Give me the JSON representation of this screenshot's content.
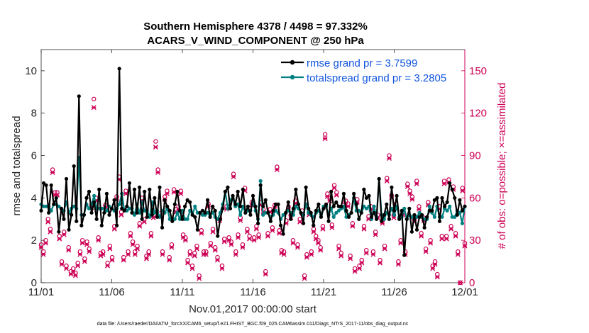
{
  "chart_data": {
    "type": "line",
    "title_line1": "Southern Hemisphere 4378 / 4498 = 97.332%",
    "title_line2": "ACARS_V_WIND_COMPONENT @ 250 hPa",
    "xlabel": "Nov.01,2017 00:00:00 start",
    "ylabel_left": "rmse and totalspread",
    "ylabel_right": "# of obs: o=possible; ×=assimilated",
    "x_tick_labels": [
      "11/01",
      "11/06",
      "11/11",
      "11/16",
      "11/21",
      "11/26",
      "12/01"
    ],
    "x_tick_days": [
      0,
      5,
      10,
      15,
      20,
      25,
      30
    ],
    "xlim": [
      0,
      30
    ],
    "ylim_left": [
      0,
      11
    ],
    "y_ticks_left": [
      "0",
      "2",
      "4",
      "6",
      "8",
      "10"
    ],
    "y_tick_values_left": [
      0,
      2,
      4,
      6,
      8,
      10
    ],
    "ylim_right": [
      0,
      165
    ],
    "y_ticks_right": [
      "0",
      "30",
      "60",
      "90",
      "120",
      "150"
    ],
    "y_tick_values_right": [
      0,
      30,
      60,
      90,
      120,
      150
    ],
    "footer": "data file: /Users/raeder/DAI/ATM_forcXX/CAM6_setup/f.e21.FHIST_BGC.f09_025.CAM6assim.011/Diags_NTrS_2017-11/obs_diag_output.nc",
    "colors": {
      "rmse": "#000000",
      "spread": "#008080",
      "obs": "#cc0055",
      "legend_text": "#1155dd",
      "right_axis": "#cc0055"
    },
    "series": [
      {
        "name": "rmse",
        "legend": "rmse grand pr = 3.7599",
        "values": [
          3.4,
          4.7,
          4.6,
          3.3,
          4.6,
          3.7,
          4.0,
          2.4,
          3.5,
          3.0,
          4.9,
          2.5,
          3.2,
          5.5,
          2.9,
          8.8,
          2.7,
          3.2,
          4.0,
          4.3,
          3.3,
          3.8,
          3.0,
          4.4,
          2.7,
          3.3,
          4.2,
          3.2,
          3.5,
          3.9,
          2.7,
          10.1,
          3.5,
          3.4,
          3.6,
          4.7,
          3.3,
          4.4,
          3.3,
          4.5,
          3.0,
          4.3,
          3.1,
          4.4,
          3.2,
          4.0,
          3.1,
          4.5,
          2.6,
          3.9,
          3.6,
          3.4,
          2.9,
          3.7,
          4.3,
          3.4,
          3.0,
          3.6,
          3.9,
          3.8,
          3.2,
          3.1,
          2.5,
          3.3,
          3.4,
          3.3,
          3.9,
          3.1,
          3.6,
          3.4,
          2.2,
          3.0,
          3.5,
          4.3,
          4.5,
          3.5,
          4.1,
          3.7,
          4.3,
          3.6,
          4.4,
          3.3,
          3.6,
          3.2,
          4.1,
          3.6,
          2.8,
          4.6,
          3.6,
          3.9,
          3.3,
          2.9,
          3.4,
          3.7,
          3.7,
          2.7,
          2.3,
          3.3,
          3.8,
          3.0,
          3.5,
          4.4,
          3.7,
          3.3,
          2.8,
          4.5,
          3.5,
          3.3,
          2.7,
          3.4,
          3.7,
          3.1,
          3.5,
          3.7,
          2.9,
          4.3,
          3.6,
          3.8,
          3.6,
          3.6,
          4.2,
          3.4,
          3.1,
          3.3,
          4.2,
          3.7,
          3.0,
          3.3,
          4.4,
          4.0,
          4.1,
          3.1,
          3.3,
          3.0,
          4.9,
          2.9,
          3.2,
          3.7,
          3.0,
          4.5,
          3.4,
          4.1,
          3.0,
          3.4,
          1.3,
          3.0,
          3.5,
          2.4,
          3.2,
          2.5,
          3.1,
          3.2,
          2.6,
          3.1,
          3.4,
          3.4,
          3.9,
          4.0,
          2.9,
          4.0,
          3.6,
          3.8,
          4.7,
          4.4,
          4.0,
          3.2,
          3.9,
          3.4,
          3.6
        ],
        "values_truncated": true
      },
      {
        "name": "totalspread",
        "legend": "totalspread grand pr = 3.2805",
        "values": [
          3.7,
          3.6,
          3.6,
          3.6,
          3.4,
          3.7,
          3.7,
          3.6,
          3.5,
          3.4,
          3.8,
          3.3,
          3.5,
          3.6,
          3.5,
          5.9,
          3.2,
          3.2,
          3.7,
          3.5,
          3.7,
          4.1,
          3.5,
          3.5,
          3.5,
          3.5,
          3.4,
          3.6,
          3.5,
          3.4,
          3.5,
          3.7,
          4.2,
          3.4,
          3.4,
          3.5,
          3.5,
          3.2,
          3.7,
          3.3,
          3.8,
          3.4,
          3.4,
          3.1,
          3.8,
          3.3,
          3.4,
          3.1,
          3.4,
          3.3,
          3.5,
          3.0,
          3.0,
          3.0,
          3.3,
          3.0,
          3.4,
          3.0,
          3.0,
          3.4,
          3.2,
          3.6,
          3.3,
          3.3,
          3.2,
          3.2,
          3.3,
          3.2,
          3.3,
          3.1,
          3.0,
          3.3,
          3.7,
          4.3,
          3.5,
          3.9,
          4.0,
          3.6,
          3.7,
          3.2,
          3.6,
          3.3,
          3.4,
          3.4,
          3.8,
          3.4,
          3.0,
          4.8,
          3.2,
          3.3,
          3.3,
          3.1,
          3.2,
          3.4,
          3.3,
          3.0,
          3.2,
          3.3,
          3.4,
          3.3,
          3.2,
          3.6,
          3.5,
          3.3,
          3.2,
          3.7,
          3.3,
          3.2,
          3.1,
          3.3,
          3.4,
          3.2,
          3.6,
          3.6,
          3.2,
          3.5,
          3.1,
          3.3,
          3.4,
          3.5,
          3.6,
          3.1,
          3.2,
          3.3,
          4.0,
          3.4,
          3.4,
          3.3,
          3.6,
          3.5,
          3.6,
          3.0,
          3.6,
          3.1,
          4.9,
          3.2,
          3.0,
          3.3,
          3.2,
          3.5,
          3.2,
          3.6,
          3.1,
          3.1,
          3.5,
          3.0,
          3.2,
          3.1,
          3.1,
          3.1,
          3.3,
          3.1,
          3.0,
          3.0,
          3.6,
          3.3,
          3.1,
          3.6,
          3.1,
          3.1,
          3.5,
          3.4,
          3.6,
          3.1,
          3.1,
          3.4,
          3.3,
          2.8,
          3.6
        ],
        "values_truncated": true
      },
      {
        "name": "obs_possible",
        "marker": "o",
        "values": [
          27,
          22,
          30,
          45,
          38,
          80,
          64,
          64,
          33,
          15,
          36,
          12,
          25,
          8,
          10,
          7,
          14,
          22,
          30,
          17,
          29,
          24,
          55,
          130,
          60,
          32,
          21,
          22,
          55,
          14,
          26,
          18,
          40,
          61,
          75,
          50,
          18,
          65,
          22,
          35,
          29,
          22,
          26,
          42,
          60,
          45,
          19,
          22,
          35,
          48,
          100,
          80,
          49,
          22,
          61,
          65,
          18,
          27,
          66,
          52,
          54,
          65,
          34,
          32,
          16,
          22,
          12,
          21,
          26,
          5,
          37,
          22,
          22,
          56,
          28,
          38,
          25,
          18,
          46,
          12,
          31,
          54,
          32,
          29,
          77,
          22,
          34,
          46,
          27,
          67,
          38,
          33,
          57,
          32,
          40,
          34,
          57,
          52,
          8,
          35,
          52,
          39,
          55,
          82,
          37,
          23,
          22,
          44,
          54,
          48,
          30,
          58,
          27,
          45,
          51,
          5,
          20,
          50,
          22,
          38,
          33,
          30,
          25,
          40,
          105,
          63,
          60,
          41,
          69,
          64,
          26,
          21,
          55,
          58,
          56,
          19,
          42,
          10,
          59,
          12,
          16,
          40,
          23,
          47,
          54,
          22,
          36,
          48,
          16,
          44,
          26,
          74,
          90,
          62,
          48,
          56,
          15,
          30,
          50,
          22,
          70,
          65,
          61,
          45,
          72,
          54,
          35,
          46,
          24,
          57,
          30,
          12,
          15,
          6,
          54,
          33,
          72,
          33,
          73,
          40,
          68,
          35,
          22,
          0,
          67,
          28
        ],
        "values_truncated": true
      },
      {
        "name": "obs_assimilated",
        "marker": "x",
        "values": [
          25,
          20,
          28,
          43,
          36,
          78,
          62,
          62,
          31,
          13,
          34,
          10,
          23,
          6,
          8,
          5,
          12,
          20,
          28,
          15,
          27,
          22,
          53,
          124,
          58,
          30,
          19,
          20,
          53,
          12,
          24,
          16,
          38,
          59,
          73,
          48,
          16,
          63,
          20,
          33,
          27,
          20,
          24,
          40,
          58,
          43,
          17,
          20,
          33,
          46,
          96,
          78,
          47,
          20,
          59,
          63,
          16,
          25,
          64,
          50,
          52,
          63,
          32,
          30,
          14,
          20,
          10,
          19,
          24,
          3,
          35,
          20,
          20,
          54,
          26,
          36,
          23,
          16,
          44,
          10,
          29,
          52,
          30,
          27,
          75,
          20,
          32,
          44,
          25,
          65,
          36,
          31,
          55,
          30,
          38,
          32,
          55,
          50,
          6,
          33,
          50,
          37,
          53,
          80,
          35,
          21,
          20,
          42,
          52,
          46,
          28,
          56,
          25,
          43,
          49,
          3,
          18,
          48,
          20,
          36,
          31,
          28,
          23,
          38,
          102,
          61,
          58,
          39,
          67,
          62,
          24,
          19,
          53,
          56,
          54,
          17,
          40,
          8,
          57,
          10,
          14,
          38,
          21,
          45,
          52,
          20,
          34,
          46,
          14,
          42,
          24,
          72,
          88,
          60,
          46,
          54,
          13,
          28,
          48,
          20,
          68,
          63,
          59,
          43,
          70,
          52,
          33,
          44,
          22,
          55,
          28,
          10,
          13,
          4,
          52,
          31,
          70,
          31,
          71,
          38,
          66,
          33,
          20,
          0,
          65,
          26
        ],
        "values_truncated": true
      }
    ]
  }
}
